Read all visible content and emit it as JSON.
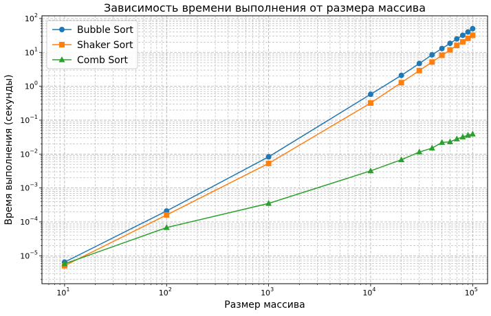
{
  "chart_data": {
    "type": "line",
    "title": "Зависимость времени выполнения от размера массива",
    "xlabel": "Размер массива",
    "ylabel": "Время выполнения (секунды)",
    "xscale": "log",
    "yscale": "log",
    "xlim": [
      6,
      140000
    ],
    "ylim": [
      1.5e-06,
      120
    ],
    "grid": true,
    "legend_position": "top-left",
    "x_ticks": [
      {
        "base": "10",
        "exp": "1",
        "value": 10
      },
      {
        "base": "10",
        "exp": "2",
        "value": 100
      },
      {
        "base": "10",
        "exp": "3",
        "value": 1000
      },
      {
        "base": "10",
        "exp": "4",
        "value": 10000
      },
      {
        "base": "10",
        "exp": "5",
        "value": 100000
      }
    ],
    "y_ticks": [
      {
        "base": "10",
        "exp": "−5",
        "value": 1e-05
      },
      {
        "base": "10",
        "exp": "−4",
        "value": 0.0001
      },
      {
        "base": "10",
        "exp": "−3",
        "value": 0.001
      },
      {
        "base": "10",
        "exp": "−2",
        "value": 0.01
      },
      {
        "base": "10",
        "exp": "−1",
        "value": 0.1
      },
      {
        "base": "10",
        "exp": "0",
        "value": 1
      },
      {
        "base": "10",
        "exp": "1",
        "value": 10
      },
      {
        "base": "10",
        "exp": "2",
        "value": 100
      }
    ],
    "x": [
      10,
      100,
      1000,
      10000,
      20000,
      30000,
      40000,
      50000,
      60000,
      70000,
      80000,
      90000,
      100000
    ],
    "series": [
      {
        "name": "Bubble Sort",
        "color": "#1f77b4",
        "marker": "circle",
        "x": [
          10,
          100,
          1000,
          10000,
          20000,
          30000,
          40000,
          50000,
          60000,
          70000,
          80000,
          90000,
          100000
        ],
        "values": [
          6.5e-06,
          0.00021,
          0.0083,
          0.58,
          2.1,
          4.7,
          8.5,
          13,
          18.5,
          25,
          32,
          40,
          50
        ]
      },
      {
        "name": "Shaker Sort",
        "color": "#ff7f0e",
        "marker": "square",
        "x": [
          10,
          100,
          1000,
          10000,
          20000,
          30000,
          40000,
          50000,
          60000,
          70000,
          80000,
          90000,
          100000
        ],
        "values": [
          5.1e-06,
          0.00016,
          0.0053,
          0.32,
          1.28,
          2.9,
          5.2,
          8.2,
          11.8,
          16,
          20.5,
          26,
          32
        ]
      },
      {
        "name": "Comb Sort",
        "color": "#2ca02c",
        "marker": "triangle",
        "x": [
          10,
          100,
          1000,
          10000,
          20000,
          30000,
          40000,
          50000,
          60000,
          70000,
          80000,
          90000,
          100000
        ],
        "values": [
          5.8e-06,
          6.8e-05,
          0.00035,
          0.0032,
          0.0068,
          0.0115,
          0.015,
          0.022,
          0.023,
          0.028,
          0.032,
          0.036,
          0.039
        ]
      }
    ]
  }
}
